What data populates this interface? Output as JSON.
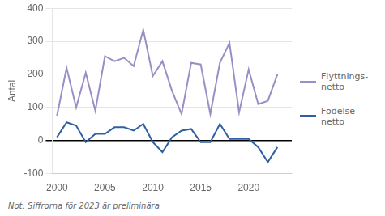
{
  "chart_data": {
    "type": "line",
    "ylabel": "Antal",
    "annotations": [
      "Not: Siffrorna för 2023 är preliminära"
    ],
    "x": [
      2000,
      2001,
      2002,
      2003,
      2004,
      2005,
      2006,
      2007,
      2008,
      2009,
      2010,
      2011,
      2012,
      2013,
      2014,
      2015,
      2016,
      2017,
      2018,
      2019,
      2020,
      2021,
      2022,
      2023
    ],
    "series": [
      {
        "name": "Flyttnings-\nnetto",
        "color": "#9b8ec4",
        "values": [
          75,
          220,
          100,
          205,
          90,
          255,
          240,
          250,
          225,
          335,
          195,
          240,
          150,
          80,
          235,
          230,
          80,
          235,
          295,
          85,
          215,
          110,
          120,
          200
        ]
      },
      {
        "name": "Födelse-\nnetto",
        "color": "#2e5fa3",
        "values": [
          10,
          55,
          45,
          -5,
          20,
          20,
          40,
          40,
          30,
          50,
          -5,
          -35,
          10,
          30,
          35,
          -5,
          -5,
          50,
          5,
          5,
          5,
          -20,
          -65,
          -20
        ]
      }
    ],
    "xlim": [
      1999.5,
      2024.5
    ],
    "xticks": [
      2000,
      2005,
      2010,
      2015,
      2020
    ],
    "ylim": [
      -100,
      400
    ],
    "yticks": [
      -100,
      0,
      100,
      200,
      300,
      400
    ],
    "grid": "y",
    "legend": "right"
  }
}
